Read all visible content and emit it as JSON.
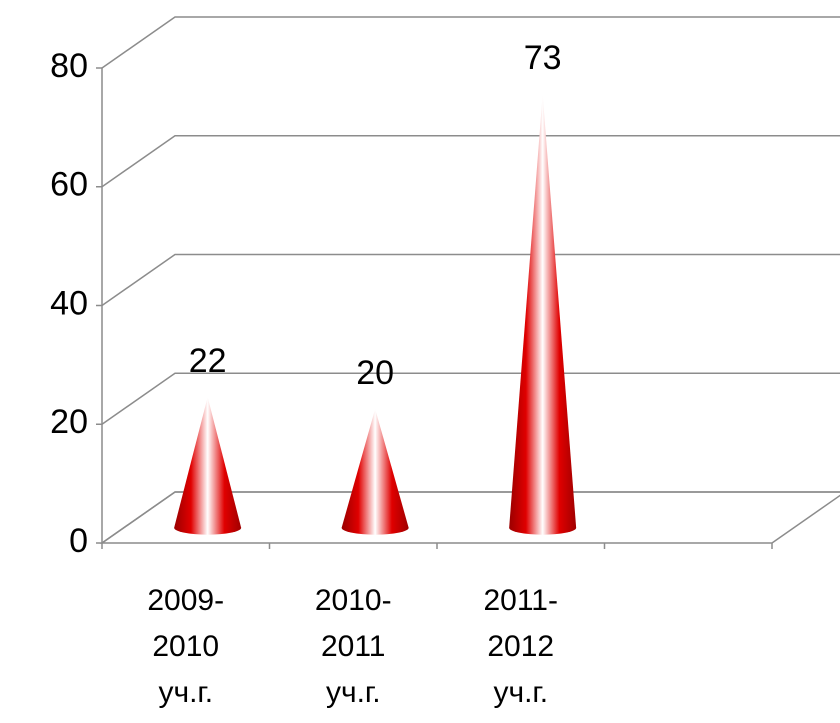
{
  "chart_data": {
    "type": "cone",
    "categories": [
      "2009-2010 уч.г.",
      "2010-2011 уч.г.",
      "2011-2012 уч.г.",
      null
    ],
    "values": [
      22,
      20,
      73,
      null
    ],
    "color": "#d40000",
    "ylim": [
      0,
      80
    ],
    "yticks": [
      0,
      20,
      40,
      60,
      80
    ],
    "grid": true
  }
}
